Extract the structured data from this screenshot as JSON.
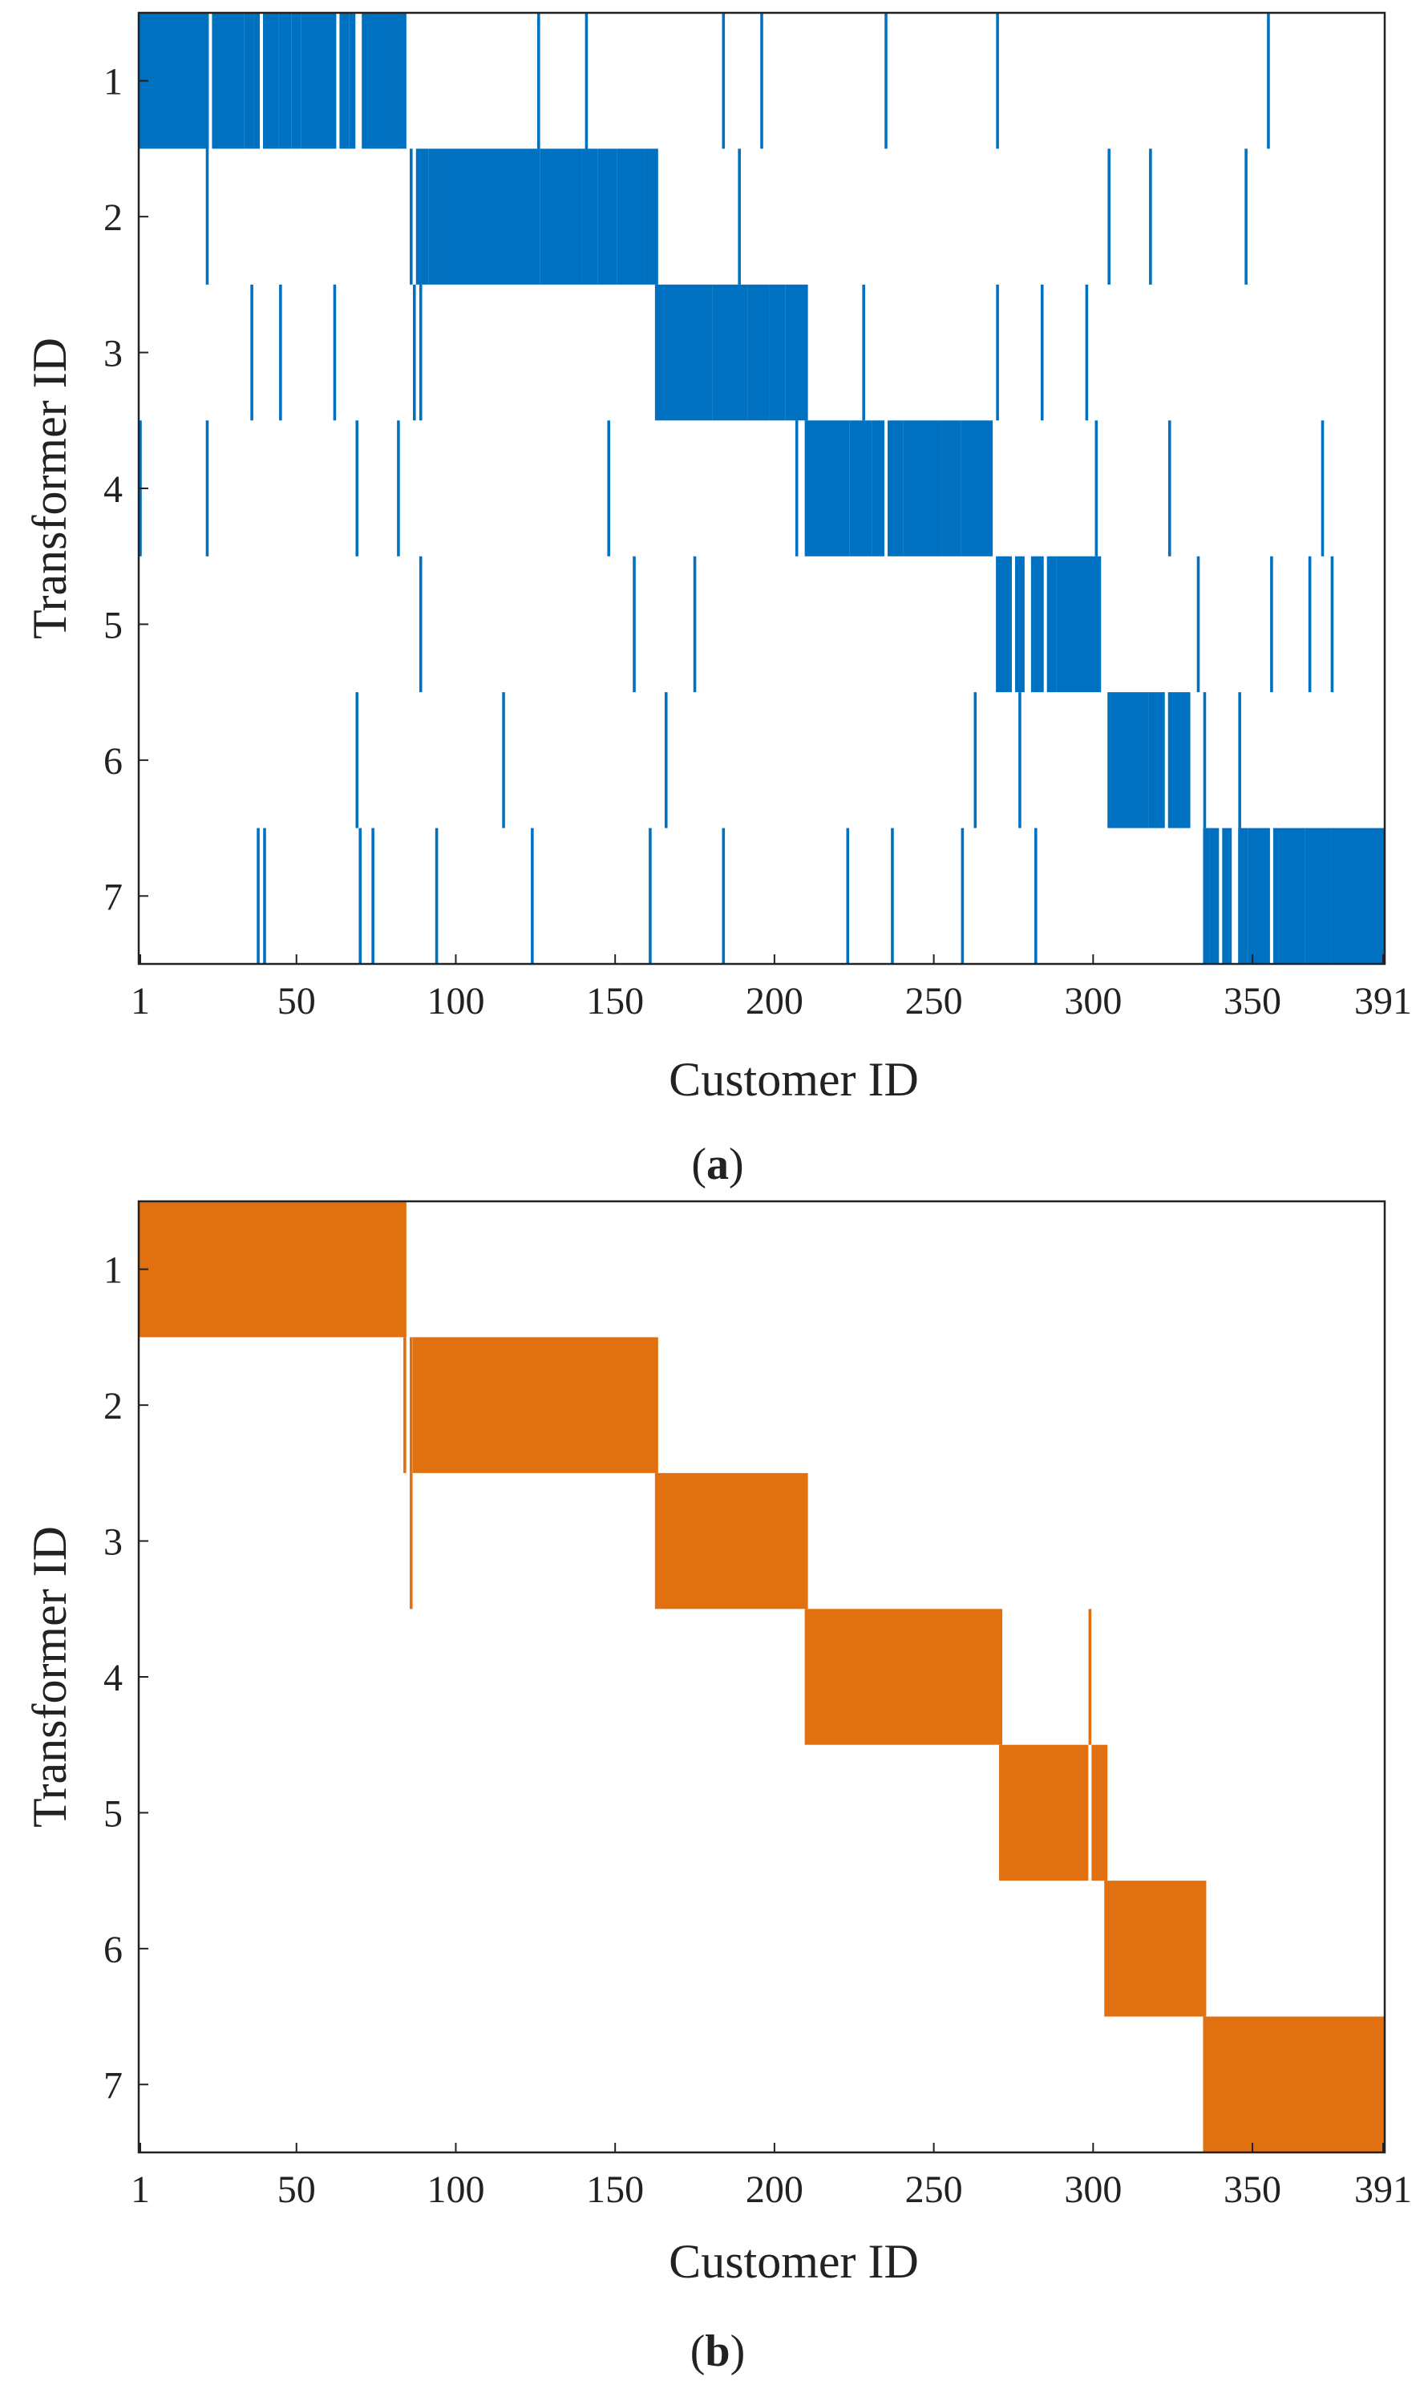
{
  "chart_data": [
    {
      "type": "heatmap",
      "panel_label": "a",
      "title": "",
      "xlabel": "Customer ID",
      "ylabel": "Transformer ID",
      "xlim": [
        1,
        391
      ],
      "xticks": [
        1,
        50,
        100,
        150,
        200,
        250,
        300,
        350,
        391
      ],
      "yticks": [
        1,
        2,
        3,
        4,
        5,
        6,
        7
      ],
      "color": "#0070C0",
      "rows": [
        {
          "transformer": 1,
          "blocks": [
            [
              1,
              22
            ],
            [
              24,
              33
            ],
            [
              34,
              36
            ],
            [
              37,
              38
            ],
            [
              40,
              44
            ],
            [
              45,
              48
            ],
            [
              49,
              51
            ],
            [
              52,
              62
            ],
            [
              64,
              66
            ],
            [
              67,
              68
            ],
            [
              71,
              78
            ],
            [
              79,
              80
            ],
            [
              81,
              84
            ]
          ],
          "lines": [
            126,
            141,
            184,
            196,
            235,
            270,
            355
          ]
        },
        {
          "transformer": 2,
          "blocks": [
            [
              88,
              91
            ],
            [
              92,
              96
            ],
            [
              97,
              126
            ],
            [
              127,
              136
            ],
            [
              137,
              139
            ],
            [
              140,
              144
            ],
            [
              145,
              150
            ],
            [
              151,
              155
            ],
            [
              156,
              159
            ],
            [
              160,
              163
            ]
          ],
          "lines": [
            22,
            86,
            189,
            305,
            318,
            348
          ]
        },
        {
          "transformer": 3,
          "blocks": [
            [
              163,
              180
            ],
            [
              181,
              191
            ],
            [
              192,
              198
            ],
            [
              199,
              203
            ],
            [
              204,
              210
            ]
          ],
          "lines": [
            36,
            45,
            62,
            87,
            89,
            228,
            270,
            284,
            298
          ]
        },
        {
          "transformer": 4,
          "blocks": [
            [
              210,
              223
            ],
            [
              224,
              230
            ],
            [
              231,
              234
            ],
            [
              236,
              240
            ],
            [
              241,
              252
            ],
            [
              253,
              258
            ],
            [
              259,
              268
            ]
          ],
          "lines": [
            1,
            22,
            69,
            82,
            148,
            207,
            301,
            324,
            372
          ]
        },
        {
          "transformer": 5,
          "blocks": [
            [
              270,
              274
            ],
            [
              276,
              278
            ],
            [
              281,
              284
            ],
            [
              286,
              288
            ],
            [
              289,
              302
            ]
          ],
          "lines": [
            89,
            156,
            175,
            333,
            356,
            368,
            375
          ]
        },
        {
          "transformer": 6,
          "blocks": [
            [
              305,
              317
            ],
            [
              318,
              322
            ],
            [
              324,
              330
            ]
          ],
          "lines": [
            69,
            115,
            166,
            263,
            277,
            335,
            346
          ]
        },
        {
          "transformer": 7,
          "blocks": [
            [
              335,
              336
            ],
            [
              337,
              339
            ],
            [
              341,
              343
            ],
            [
              346,
              348
            ],
            [
              349,
              355
            ],
            [
              357,
              366
            ],
            [
              367,
              374
            ],
            [
              375,
              391
            ]
          ],
          "lines": [
            38,
            40,
            70,
            74,
            94,
            124,
            161,
            184,
            223,
            237,
            259,
            282
          ]
        }
      ]
    },
    {
      "type": "heatmap",
      "panel_label": "b",
      "title": "",
      "xlabel": "Customer ID",
      "ylabel": "Transformer ID",
      "xlim": [
        1,
        391
      ],
      "xticks": [
        1,
        50,
        100,
        150,
        200,
        250,
        300,
        350,
        391
      ],
      "yticks": [
        1,
        2,
        3,
        4,
        5,
        6,
        7
      ],
      "color": "#E07010",
      "rows": [
        {
          "transformer": 1,
          "blocks": [
            [
              1,
              84
            ]
          ],
          "lines": []
        },
        {
          "transformer": 2,
          "blocks": [
            [
              87,
              163
            ]
          ],
          "lines": [
            84,
            86
          ]
        },
        {
          "transformer": 3,
          "blocks": [
            [
              163,
              210
            ]
          ],
          "lines": [
            86
          ]
        },
        {
          "transformer": 4,
          "blocks": [
            [
              210,
              271
            ]
          ],
          "lines": [
            299
          ]
        },
        {
          "transformer": 5,
          "blocks": [
            [
              271,
              298
            ],
            [
              300,
              304
            ]
          ],
          "lines": []
        },
        {
          "transformer": 6,
          "blocks": [
            [
              304,
              335
            ]
          ],
          "lines": []
        },
        {
          "transformer": 7,
          "blocks": [
            [
              335,
              391
            ]
          ],
          "lines": []
        }
      ]
    }
  ]
}
